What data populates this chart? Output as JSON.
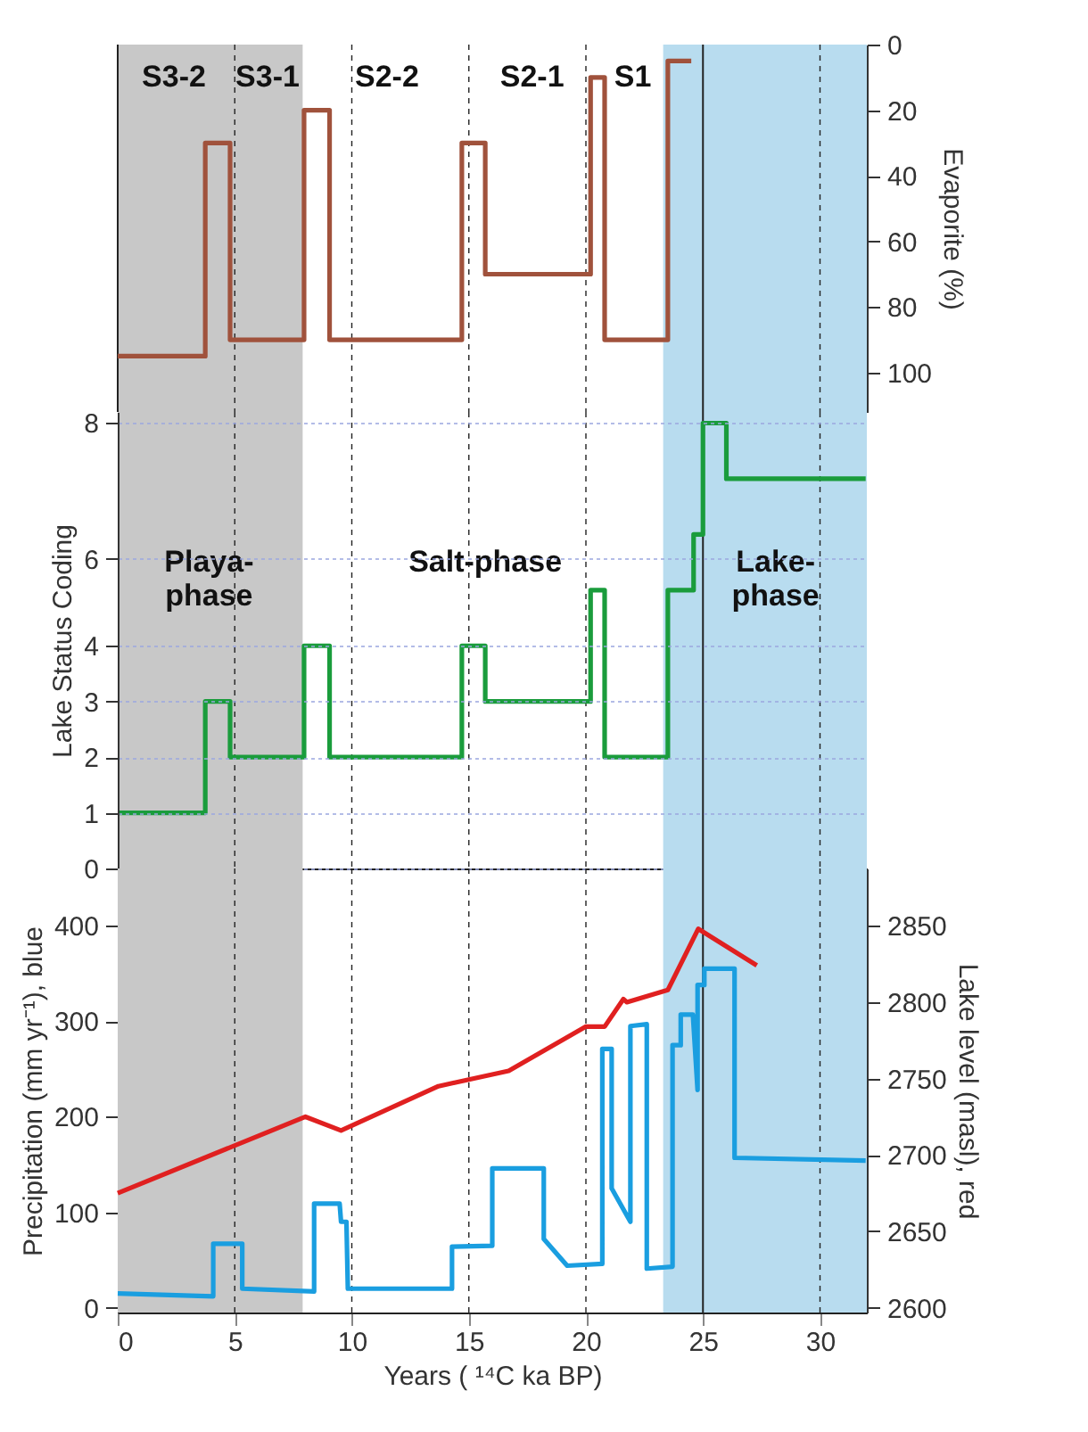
{
  "chart_data": [
    {
      "type": "step",
      "xlim": [
        0,
        32
      ],
      "y2lim": [
        112,
        0
      ],
      "y2ticks": [
        0,
        20,
        40,
        60,
        80,
        100
      ],
      "y2label": "Evaporite (%)",
      "tick_labels": "y",
      "legend": false,
      "grid": false,
      "series": [
        {
          "axis": "y2",
          "color": "#a0523c",
          "x": [
            0,
            3.74,
            4.8,
            7.96,
            9.05,
            14.7,
            15.7,
            20.2,
            20.8,
            23.5,
            24.5
          ],
          "values": [
            95,
            30,
            90,
            20,
            90,
            30,
            70,
            10,
            90,
            5,
            5
          ]
        }
      ],
      "bands": [
        {
          "axis": "x",
          "from": 0,
          "to": 7.9,
          "color": "#c8c8c8"
        },
        {
          "axis": "x",
          "from": 23.3,
          "to": 32,
          "color": "#b8dcef"
        }
      ],
      "ref_lines": [
        {
          "axis": "x",
          "value": 0,
          "line_style": "solid"
        },
        {
          "axis": "x",
          "value": 5,
          "line_style": "dashed"
        },
        {
          "axis": "x",
          "value": 10,
          "line_style": "dashed"
        },
        {
          "axis": "x",
          "value": 15,
          "line_style": "dashed"
        },
        {
          "axis": "x",
          "value": 20,
          "line_style": "dashed"
        },
        {
          "axis": "x",
          "value": 25,
          "line_style": "solid"
        },
        {
          "axis": "x",
          "value": 30,
          "line_style": "dashed"
        }
      ],
      "annotations": [
        "S3-2",
        "S3-1",
        "S2-2",
        "S2-1",
        "S1"
      ]
    },
    {
      "type": "step",
      "xlim": [
        0,
        32
      ],
      "ylim": [
        0,
        8.2
      ],
      "yticks": [
        0,
        1,
        2,
        3,
        4,
        {
          "value": 5.56,
          "label": "6"
        },
        8
      ],
      "ylabel": "Lake Status Coding",
      "tick_labels": "y",
      "legend": false,
      "grid": "y",
      "series": [
        {
          "color": "#1a9c3c",
          "x": [
            0,
            3.74,
            4.8,
            7.96,
            9.05,
            14.7,
            15.7,
            20.2,
            20.8,
            23.5,
            24.6,
            25.0,
            26.0,
            31.95
          ],
          "values": [
            1,
            3,
            2,
            4,
            2,
            4,
            3,
            5,
            2,
            5,
            6,
            8,
            7,
            7
          ]
        }
      ],
      "bands": [
        {
          "axis": "x",
          "from": 0,
          "to": 7.9,
          "color": "#c8c8c8"
        },
        {
          "axis": "x",
          "from": 23.3,
          "to": 32,
          "color": "#b8dcef"
        }
      ],
      "ref_lines": [
        {
          "axis": "x",
          "value": 5,
          "line_style": "dashed"
        },
        {
          "axis": "x",
          "value": 10,
          "line_style": "dashed"
        },
        {
          "axis": "x",
          "value": 15,
          "line_style": "dashed"
        },
        {
          "axis": "x",
          "value": 20,
          "line_style": "dashed"
        },
        {
          "axis": "x",
          "value": 25,
          "line_style": "solid"
        },
        {
          "axis": "x",
          "value": 30,
          "line_style": "dashed"
        }
      ],
      "annotations": [
        "Playa-\nphase",
        "Salt-phase",
        "Lake-\nphase"
      ]
    },
    {
      "type": "line",
      "xlim": [
        0,
        32
      ],
      "xticks": [
        0,
        5,
        10,
        15,
        20,
        25,
        30
      ],
      "xlabel": "Years ( ¹⁴C ka BP)",
      "ylim": [
        -5,
        460
      ],
      "yticks": [
        0,
        100,
        200,
        300,
        400
      ],
      "ylabel": "Precipitation (mm yr⁻¹), blue",
      "y2lim": [
        2596.875,
        2887.5
      ],
      "y2ticks": [
        2600,
        2650,
        2700,
        2750,
        2800,
        2850
      ],
      "y2label": "Lake level (masl), red",
      "legend": false,
      "grid": false,
      "series": [
        {
          "color": "#1a9ee0",
          "x": [
            0,
            4.08,
            4.08,
            5.32,
            5.32,
            8.39,
            8.39,
            9.48,
            9.54,
            9.77,
            9.83,
            14.28,
            14.28,
            16.0,
            16.0,
            18.2,
            18.2,
            19.2,
            20.7,
            20.7,
            21.1,
            21.1,
            21.9,
            21.9,
            22.6,
            22.6,
            23.7,
            23.7,
            24.05,
            24.05,
            24.57,
            24.77,
            24.77,
            25.06,
            25.06,
            26.35,
            26.35,
            31.95
          ],
          "values": [
            15,
            12,
            67,
            67,
            20,
            17,
            109,
            109,
            90,
            90,
            20,
            20,
            64,
            65,
            146,
            146,
            72,
            44,
            46,
            271,
            271,
            125,
            90,
            295,
            297,
            41,
            43,
            275,
            275,
            307,
            307,
            228,
            338,
            338,
            355,
            355,
            157,
            154
          ]
        },
        {
          "axis": "y2",
          "color": "#e02020",
          "x": [
            0,
            8.02,
            9.54,
            13.7,
            16.7,
            20.0,
            20.8,
            21.6,
            21.75,
            23.5,
            24.8,
            27.3
          ],
          "values": [
            2675,
            2725,
            2716,
            2745,
            2755,
            2784,
            2784,
            2802,
            2800,
            2808,
            2848,
            2824
          ]
        }
      ],
      "bands": [
        {
          "axis": "x",
          "from": 0,
          "to": 7.9,
          "color": "#c8c8c8"
        },
        {
          "axis": "x",
          "from": 23.3,
          "to": 32,
          "color": "#b8dcef"
        }
      ],
      "ref_lines": [
        {
          "axis": "x",
          "value": 5,
          "line_style": "dashed"
        },
        {
          "axis": "x",
          "value": 10,
          "line_style": "dashed"
        },
        {
          "axis": "x",
          "value": 15,
          "line_style": "dashed"
        },
        {
          "axis": "x",
          "value": 20,
          "line_style": "dashed"
        },
        {
          "axis": "x",
          "value": 25,
          "line_style": "solid"
        },
        {
          "axis": "x",
          "value": 30,
          "line_style": "dashed"
        }
      ]
    }
  ]
}
